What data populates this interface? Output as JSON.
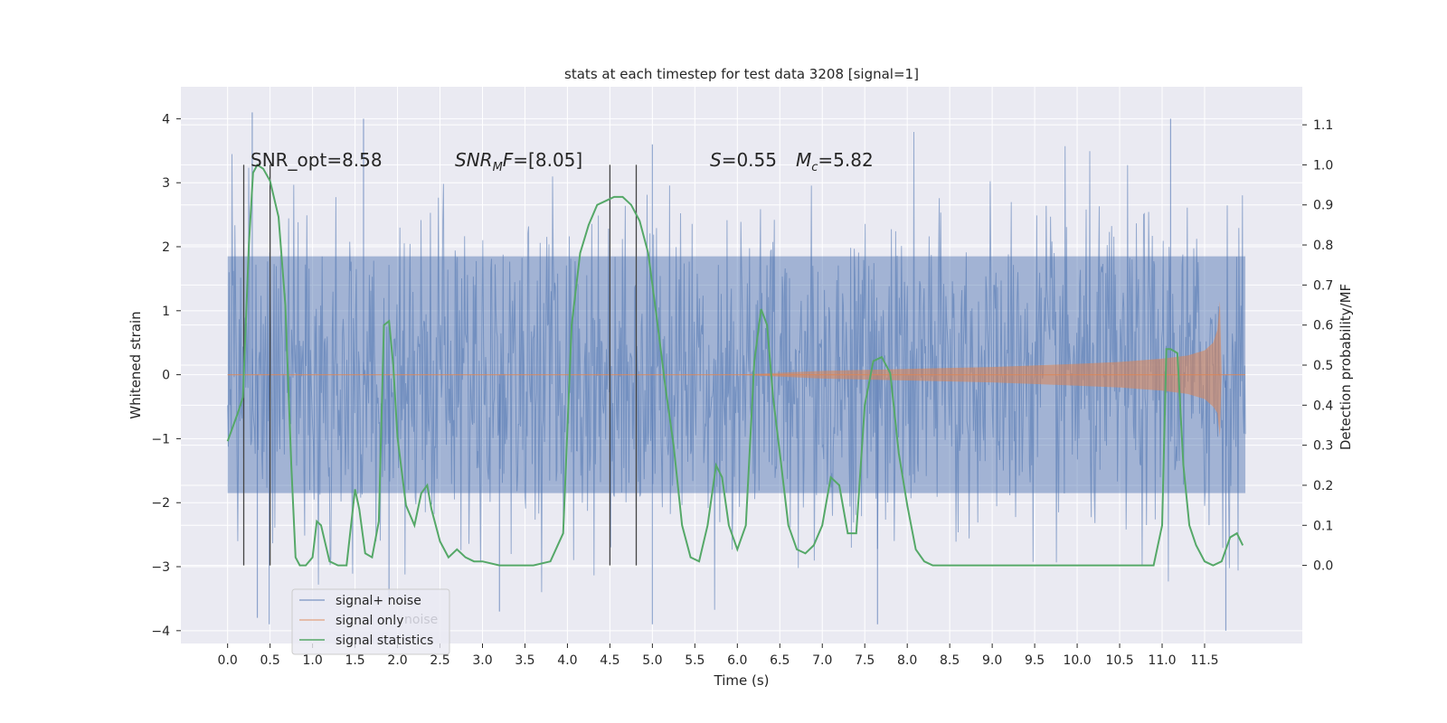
{
  "chart_data": {
    "type": "line",
    "title": "stats at each timestep for test data 3208 [signal=1]",
    "xlabel": "Time (s)",
    "ylabel": "Whitened strain",
    "y2label": "Detection probability/MF",
    "xlim": [
      -0.55,
      12.65
    ],
    "ylim": [
      -4.2,
      4.5
    ],
    "y2lim": [
      -0.195,
      1.195
    ],
    "x_ticks": [
      0.0,
      0.5,
      1.0,
      1.5,
      2.0,
      2.5,
      3.0,
      3.5,
      4.0,
      4.5,
      5.0,
      5.5,
      6.0,
      6.5,
      7.0,
      7.5,
      8.0,
      8.5,
      9.0,
      9.5,
      10.0,
      10.5,
      11.0,
      11.5
    ],
    "x_tick_labels": [
      "0.0",
      "0.5",
      "1.0",
      "1.5",
      "2.0",
      "2.5",
      "3.0",
      "3.5",
      "4.0",
      "4.5",
      "5.0",
      "5.5",
      "6.0",
      "6.5",
      "7.0",
      "7.5",
      "8.0",
      "8.5",
      "9.0",
      "9.5",
      "10.0",
      "10.5",
      "11.0",
      "11.5"
    ],
    "y_ticks": [
      4,
      3,
      2,
      1,
      0,
      -1,
      -2,
      -3,
      -4
    ],
    "y_tick_labels": [
      "4",
      "3",
      "2",
      "1",
      "0",
      "−1",
      "−2",
      "−3",
      "−4"
    ],
    "y2_ticks": [
      1.1,
      1.0,
      0.9,
      0.8,
      0.7,
      0.6,
      0.5,
      0.4,
      0.3,
      0.2,
      0.1,
      0.0
    ],
    "y2_tick_labels": [
      "1.1",
      "1.0",
      "0.9",
      "0.8",
      "0.7",
      "0.6",
      "0.5",
      "0.4",
      "0.3",
      "0.2",
      "0.1",
      "0.0"
    ],
    "grid": true,
    "legend_position": "bottom-left",
    "annotations": {
      "snr_opt": "SNR_opt=8.58",
      "snr_mf_italic": "SNR",
      "snr_mf_sub": "M",
      "snr_mf_italic2": "F",
      "snr_mf_value": "=[8.05]",
      "s_italic": "S",
      "s_value": "=0.55",
      "mc_italic": "M",
      "mc_sub": "c",
      "mc_value": "=5.82"
    },
    "legend_ghost_text": "noise",
    "vertical_markers_x": [
      0.19,
      0.5,
      4.5,
      4.81
    ],
    "series": [
      {
        "name": "signal+ noise",
        "color": "#4c72b0",
        "x_range": [
          0.0,
          11.98
        ],
        "envelope_max_abs": 4.1,
        "notable_peaks": [
          [
            0.29,
            4.1
          ],
          [
            0.35,
            -3.8
          ],
          [
            0.49,
            -3.9
          ],
          [
            1.6,
            4.0
          ],
          [
            1.9,
            -3.5
          ],
          [
            3.2,
            -3.7
          ],
          [
            5.0,
            -3.9
          ],
          [
            5.0,
            3.6
          ],
          [
            7.65,
            -3.9
          ],
          [
            11.75,
            -4.0
          ],
          [
            11.1,
            4.0
          ]
        ]
      },
      {
        "name": "signal only",
        "color": "#dd8452",
        "x": [
          0.0,
          6.0,
          7.0,
          8.0,
          9.0,
          10.0,
          10.5,
          11.0,
          11.3,
          11.5,
          11.6,
          11.65,
          11.68,
          11.7,
          11.98
        ],
        "amplitude": [
          0.0,
          0.0,
          0.06,
          0.09,
          0.12,
          0.17,
          0.2,
          0.25,
          0.3,
          0.38,
          0.5,
          0.7,
          1.15,
          0.0,
          0.0
        ]
      },
      {
        "name": "signal statistics",
        "color": "#55a868",
        "axis": "right",
        "x": [
          0.0,
          0.12,
          0.18,
          0.25,
          0.3,
          0.35,
          0.42,
          0.5,
          0.6,
          0.68,
          0.75,
          0.8,
          0.85,
          0.92,
          1.0,
          1.05,
          1.1,
          1.2,
          1.3,
          1.4,
          1.5,
          1.55,
          1.62,
          1.7,
          1.78,
          1.84,
          1.9,
          1.95,
          2.0,
          2.1,
          2.2,
          2.28,
          2.35,
          2.4,
          2.5,
          2.6,
          2.7,
          2.8,
          2.9,
          3.0,
          3.2,
          3.4,
          3.6,
          3.8,
          3.95,
          4.05,
          4.15,
          4.25,
          4.35,
          4.45,
          4.55,
          4.65,
          4.75,
          4.85,
          4.95,
          5.05,
          5.15,
          5.25,
          5.35,
          5.45,
          5.55,
          5.65,
          5.75,
          5.82,
          5.9,
          6.0,
          6.1,
          6.2,
          6.28,
          6.35,
          6.42,
          6.5,
          6.6,
          6.7,
          6.8,
          6.9,
          7.0,
          7.1,
          7.2,
          7.3,
          7.4,
          7.5,
          7.6,
          7.7,
          7.8,
          7.9,
          8.0,
          8.1,
          8.2,
          8.3,
          8.4,
          8.6,
          9.0,
          9.5,
          10.0,
          10.5,
          10.9,
          11.0,
          11.05,
          11.1,
          11.18,
          11.25,
          11.32,
          11.4,
          11.5,
          11.6,
          11.7,
          11.8,
          11.88,
          11.95
        ],
        "y": [
          0.31,
          0.38,
          0.42,
          0.8,
          0.98,
          1.0,
          0.99,
          0.96,
          0.87,
          0.65,
          0.25,
          0.02,
          0.0,
          0.0,
          0.02,
          0.11,
          0.1,
          0.01,
          0.0,
          0.0,
          0.19,
          0.14,
          0.03,
          0.02,
          0.11,
          0.6,
          0.61,
          0.5,
          0.32,
          0.15,
          0.1,
          0.18,
          0.2,
          0.14,
          0.06,
          0.02,
          0.04,
          0.02,
          0.01,
          0.01,
          0.0,
          0.0,
          0.0,
          0.01,
          0.08,
          0.6,
          0.78,
          0.85,
          0.9,
          0.91,
          0.92,
          0.92,
          0.9,
          0.86,
          0.78,
          0.62,
          0.45,
          0.3,
          0.1,
          0.02,
          0.01,
          0.1,
          0.25,
          0.22,
          0.1,
          0.04,
          0.1,
          0.51,
          0.64,
          0.6,
          0.42,
          0.28,
          0.1,
          0.04,
          0.03,
          0.05,
          0.1,
          0.22,
          0.2,
          0.08,
          0.08,
          0.4,
          0.51,
          0.52,
          0.48,
          0.28,
          0.15,
          0.04,
          0.01,
          0.0,
          0.0,
          0.0,
          0.0,
          0.0,
          0.0,
          0.0,
          0.0,
          0.1,
          0.54,
          0.54,
          0.53,
          0.25,
          0.1,
          0.05,
          0.01,
          0.0,
          0.01,
          0.07,
          0.08,
          0.05
        ]
      }
    ]
  }
}
